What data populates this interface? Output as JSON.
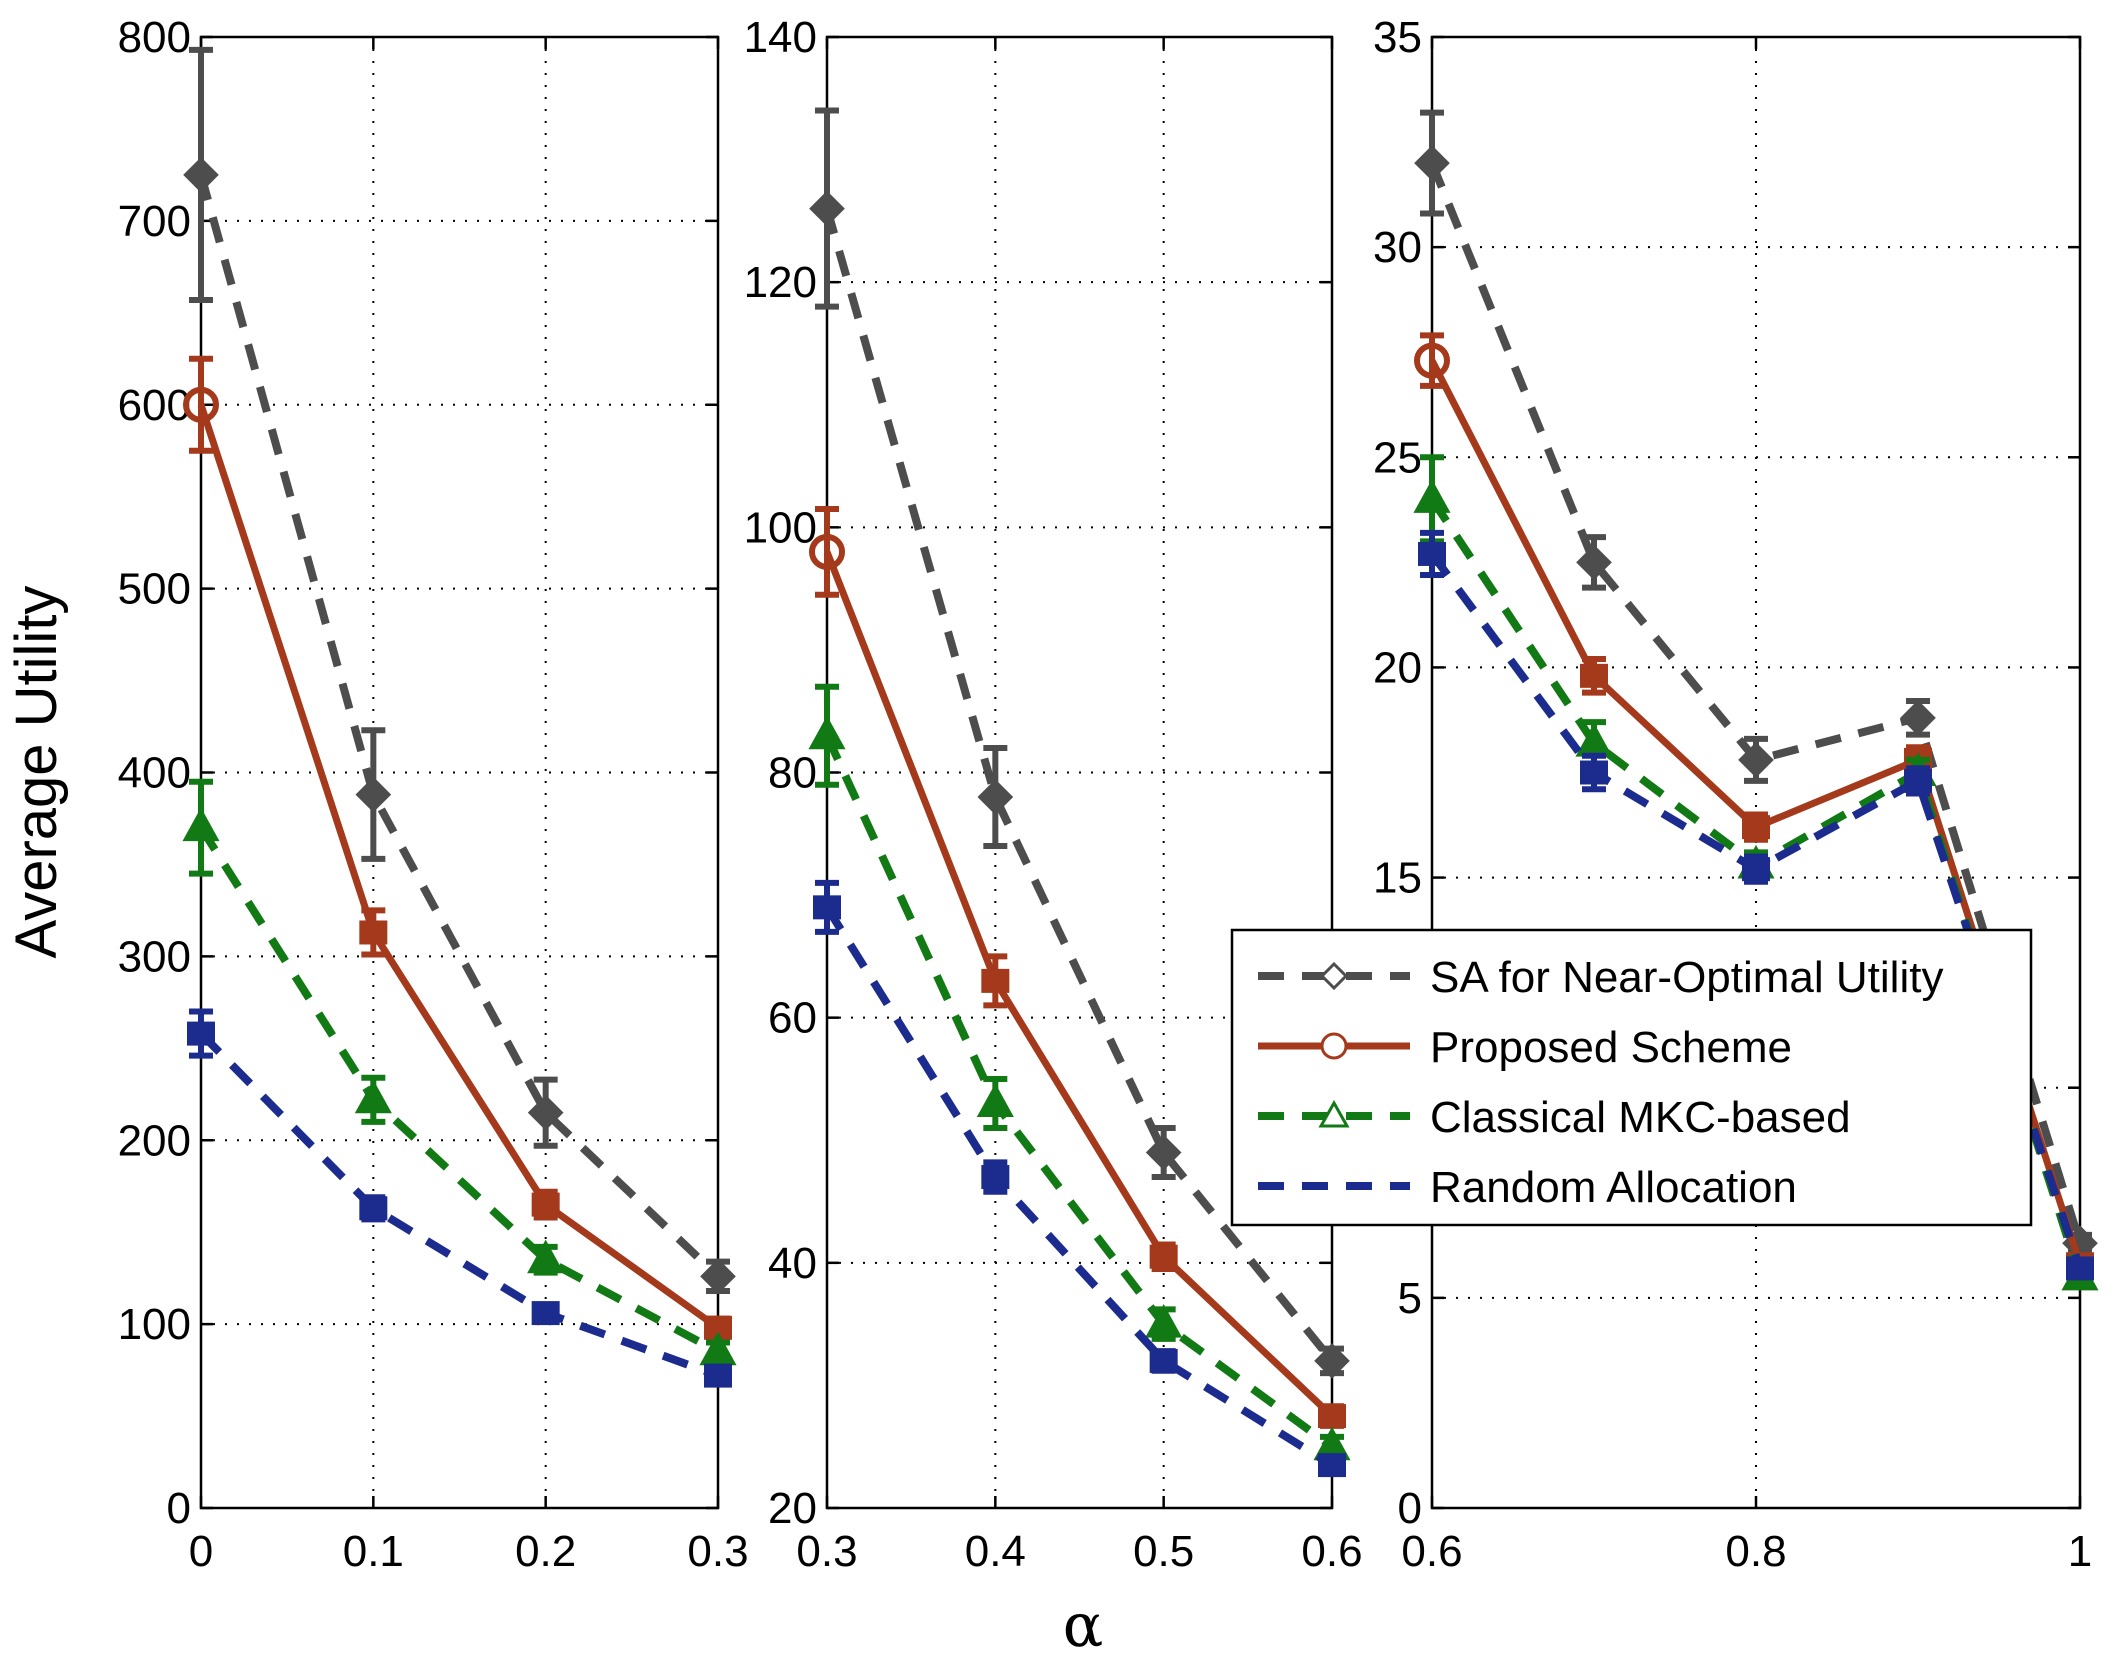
{
  "chart_data": [
    {
      "type": "line",
      "panel": "left",
      "x": [
        0,
        0.1,
        0.2,
        0.3
      ],
      "xlim": [
        0,
        0.3
      ],
      "ylim": [
        0,
        800
      ],
      "xticks": [
        "0",
        "0.1",
        "0.2",
        "0.3"
      ],
      "yticks": [
        "0",
        "100",
        "200",
        "300",
        "400",
        "500",
        "600",
        "700",
        "800"
      ],
      "ylabel": "Average Utility",
      "grid": true,
      "series": [
        {
          "name": "SA for Near-Optimal Utility",
          "values": [
            725,
            388,
            215,
            126
          ],
          "err": [
            68,
            35,
            18,
            8
          ]
        },
        {
          "name": "Proposed Scheme",
          "values": [
            600,
            313,
            165,
            98
          ],
          "err": [
            25,
            12,
            7,
            5
          ]
        },
        {
          "name": "Classical MKC-based",
          "values": [
            370,
            222,
            135,
            85
          ],
          "err": [
            25,
            12,
            7,
            5
          ]
        },
        {
          "name": "Random Allocation",
          "values": [
            258,
            163,
            106,
            72
          ],
          "err": [
            12,
            6,
            4,
            3
          ]
        }
      ]
    },
    {
      "type": "line",
      "panel": "middle",
      "x": [
        0.3,
        0.4,
        0.5,
        0.6
      ],
      "xlim": [
        0.3,
        0.6
      ],
      "ylim": [
        20,
        140
      ],
      "xticks": [
        "0.3",
        "0.4",
        "0.5",
        "0.6"
      ],
      "yticks": [
        "20",
        "40",
        "60",
        "80",
        "100",
        "120",
        "140"
      ],
      "xlabel": "α",
      "grid": true,
      "series": [
        {
          "name": "SA for Near-Optimal Utility",
          "values": [
            126,
            78,
            49,
            32
          ],
          "err": [
            8,
            4,
            2,
            1
          ]
        },
        {
          "name": "Proposed Scheme",
          "values": [
            98,
            63,
            40.5,
            27.5
          ],
          "err": [
            3.5,
            2,
            1,
            0.8
          ]
        },
        {
          "name": "Classical MKC-based",
          "values": [
            83,
            53,
            35,
            25
          ],
          "err": [
            4,
            2,
            1.2,
            0.8
          ]
        },
        {
          "name": "Random Allocation",
          "values": [
            69,
            47,
            32,
            23.5
          ],
          "err": [
            2,
            1.2,
            0.8,
            0.5
          ]
        }
      ]
    },
    {
      "type": "line",
      "panel": "right",
      "x": [
        0.6,
        0.7,
        0.8,
        0.9,
        1.0
      ],
      "xlim": [
        0.6,
        1.0
      ],
      "ylim": [
        0,
        35
      ],
      "xticks": [
        "0.6",
        "0.8",
        "1"
      ],
      "yticks": [
        "0",
        "5",
        "10",
        "15",
        "20",
        "25",
        "30",
        "35"
      ],
      "grid": true,
      "series": [
        {
          "name": "SA for Near-Optimal Utility",
          "values": [
            32,
            22.5,
            17.8,
            18.8,
            6.3
          ],
          "err": [
            1.2,
            0.6,
            0.5,
            0.4,
            0.2
          ]
        },
        {
          "name": "Proposed Scheme",
          "values": [
            27.3,
            19.8,
            16.2,
            17.8,
            5.8
          ],
          "err": [
            0.6,
            0.4,
            0.3,
            0.3,
            0.2
          ]
        },
        {
          "name": "Classical MKC-based",
          "values": [
            24,
            18.2,
            15.3,
            17.5,
            5.5
          ],
          "err": [
            1,
            0.5,
            0.3,
            0.3,
            0.2
          ]
        },
        {
          "name": "Random Allocation",
          "values": [
            22.7,
            17.5,
            15.2,
            17.3,
            5.7
          ],
          "err": [
            0.5,
            0.4,
            0.3,
            0.3,
            0.2
          ]
        }
      ]
    }
  ],
  "legend": {
    "placement": "right-middle",
    "items": [
      {
        "label": "SA for Near-Optimal Utility",
        "color": "#4d4d4d",
        "marker": "diamond",
        "style": "dashed"
      },
      {
        "label": "Proposed Scheme",
        "color": "#a5391b",
        "marker": "circle",
        "style": "solid"
      },
      {
        "label": "Classical MKC-based",
        "color": "#127a14",
        "marker": "triangle",
        "style": "dashed"
      },
      {
        "label": "Random Allocation",
        "color": "#1c2c8e",
        "marker": "none",
        "style": "dashed"
      }
    ]
  }
}
